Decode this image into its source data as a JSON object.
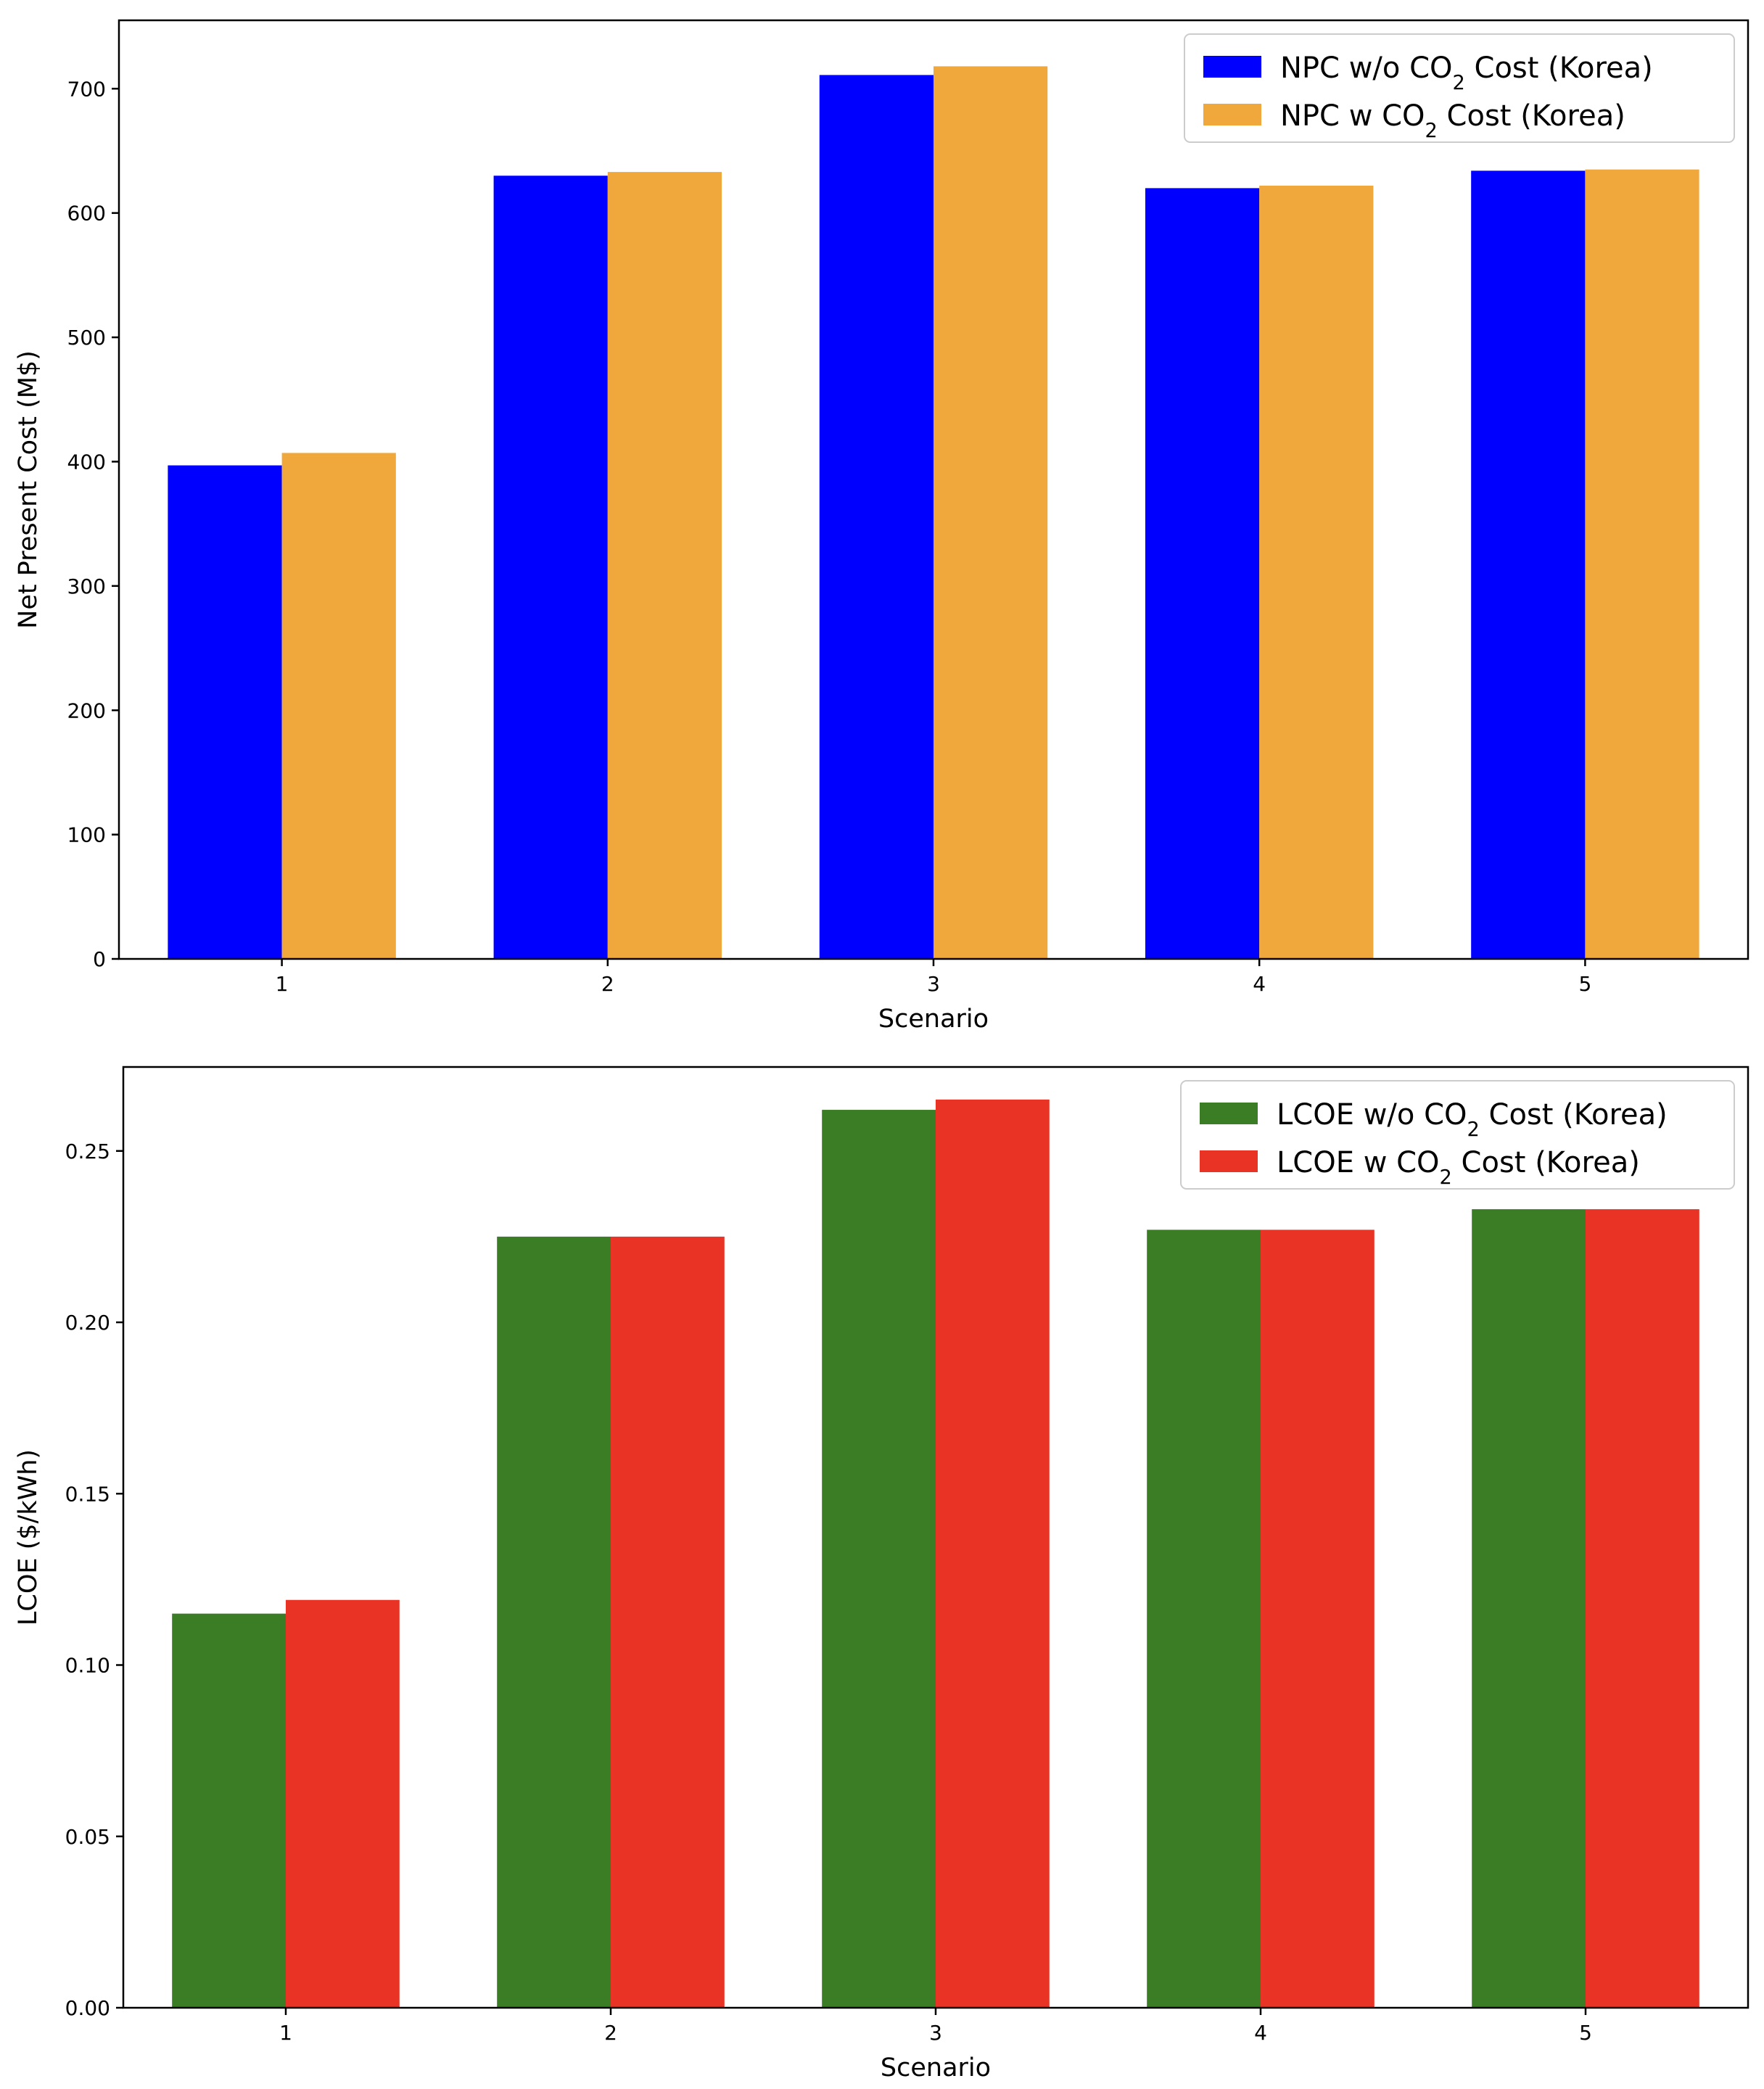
{
  "chart_data": [
    {
      "type": "bar",
      "categories": [
        "1",
        "2",
        "3",
        "4",
        "5"
      ],
      "xlabel": "Scenario",
      "ylabel": "Net Present Cost (M$)",
      "ylim": [
        0,
        755
      ],
      "yticks": [
        "0",
        "100",
        "200",
        "300",
        "400",
        "500",
        "600",
        "700"
      ],
      "ytick_values": [
        0,
        100,
        200,
        300,
        400,
        500,
        600,
        700
      ],
      "grid": false,
      "legend_position": "top-right",
      "series": [
        {
          "name": "NPC w/o CO2 Cost (Korea)",
          "legend_parts": [
            "NPC w/o CO",
            "2",
            " Cost (Korea)"
          ],
          "color": "#0000ff",
          "values": [
            397,
            630,
            711,
            620,
            634
          ]
        },
        {
          "name": "NPC w CO2 Cost (Korea)",
          "legend_parts": [
            "NPC w CO",
            "2",
            " Cost (Korea)"
          ],
          "color": "#f0a83c",
          "values": [
            407,
            633,
            718,
            622,
            635
          ]
        }
      ]
    },
    {
      "type": "bar",
      "categories": [
        "1",
        "2",
        "3",
        "4",
        "5"
      ],
      "xlabel": "Scenario",
      "ylabel": "LCOE ($/kWh)",
      "ylim": [
        0,
        0.2745
      ],
      "yticks": [
        "0.00",
        "0.05",
        "0.10",
        "0.15",
        "0.20",
        "0.25"
      ],
      "ytick_values": [
        0,
        0.05,
        0.1,
        0.15,
        0.2,
        0.25
      ],
      "grid": false,
      "legend_position": "top-right",
      "series": [
        {
          "name": "LCOE w/o CO2 Cost (Korea)",
          "legend_parts": [
            "LCOE w/o CO",
            "2",
            " Cost (Korea)"
          ],
          "color": "#3a7d24",
          "values": [
            0.115,
            0.225,
            0.262,
            0.227,
            0.233
          ]
        },
        {
          "name": "LCOE w CO2 Cost (Korea)",
          "legend_parts": [
            "LCOE w CO",
            "2",
            " Cost (Korea)"
          ],
          "color": "#e83325",
          "values": [
            0.119,
            0.225,
            0.265,
            0.227,
            0.233
          ]
        }
      ]
    }
  ]
}
